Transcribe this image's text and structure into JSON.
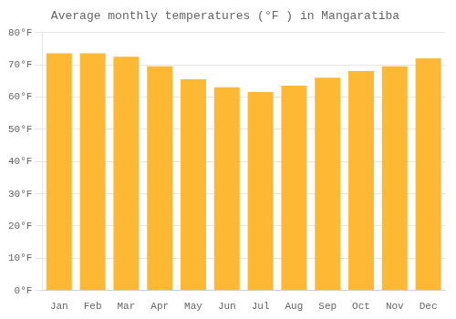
{
  "chart_data": {
    "type": "bar",
    "title": "Average monthly temperatures (°F ) in Mangaratiba",
    "categories": [
      "Jan",
      "Feb",
      "Mar",
      "Apr",
      "May",
      "Jun",
      "Jul",
      "Aug",
      "Sep",
      "Oct",
      "Nov",
      "Dec"
    ],
    "values": [
      73.5,
      73.5,
      72.5,
      69.5,
      65.5,
      63.0,
      61.5,
      63.5,
      66.0,
      68.0,
      69.5,
      72.0
    ],
    "color": "#FFB833",
    "ylim": [
      0,
      80
    ],
    "yticks": [
      {
        "value": 0,
        "label": "0°F"
      },
      {
        "value": 10,
        "label": "10°F"
      },
      {
        "value": 20,
        "label": "20°F"
      },
      {
        "value": 30,
        "label": "30°F"
      },
      {
        "value": 40,
        "label": "40°F"
      },
      {
        "value": 50,
        "label": "50°F"
      },
      {
        "value": 60,
        "label": "60°F"
      },
      {
        "value": 70,
        "label": "70°F"
      },
      {
        "value": 80,
        "label": "80°F"
      }
    ],
    "grid": true
  }
}
